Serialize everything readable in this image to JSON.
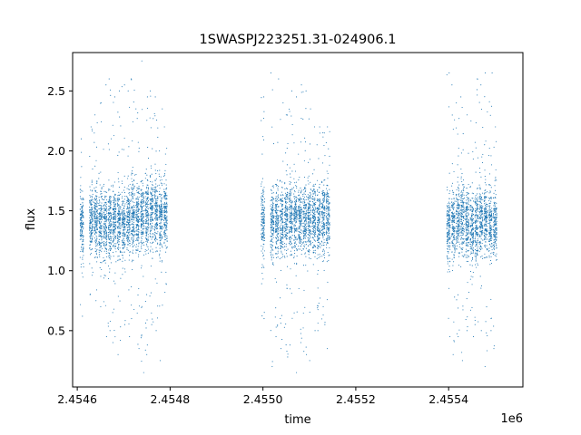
{
  "chart_data": {
    "type": "scatter",
    "title": "1SWASPJ223251.31-024906.1",
    "xlabel": "time",
    "ylabel": "flux",
    "x_offset_label": "1e6",
    "x_ticks": [
      {
        "value": 2.4546,
        "label": "2.4546"
      },
      {
        "value": 2.4548,
        "label": "2.4548"
      },
      {
        "value": 2.455,
        "label": "2.4550"
      },
      {
        "value": 2.4552,
        "label": "2.4552"
      },
      {
        "value": 2.4554,
        "label": "2.4554"
      }
    ],
    "y_ticks": [
      {
        "value": 0.5,
        "label": "0.5"
      },
      {
        "value": 1.0,
        "label": "1.0"
      },
      {
        "value": 1.5,
        "label": "1.5"
      },
      {
        "value": 2.0,
        "label": "2.0"
      },
      {
        "value": 2.5,
        "label": "2.5"
      }
    ],
    "xlim": [
      2.45459,
      2.45556
    ],
    "ylim": [
      0.03,
      2.82
    ],
    "grid": false,
    "marker_color": "#1f77b4",
    "series": [
      {
        "x": [
          2.45461,
          2.45463,
          2.45464,
          2.45465,
          2.45466,
          2.45467,
          2.45468,
          2.45469,
          2.4547,
          2.45471,
          2.45472,
          2.45473,
          2.45474,
          2.45475,
          2.45476,
          2.45477,
          2.45478,
          2.45479,
          2.455,
          2.45502,
          2.45503,
          2.45504,
          2.45505,
          2.45506,
          2.45507,
          2.45508,
          2.45509,
          2.4551,
          2.45511,
          2.45512,
          2.45513,
          2.45514,
          2.4554,
          2.45541,
          2.45542,
          2.45543,
          2.45544,
          2.45545,
          2.45546,
          2.45547,
          2.45548,
          2.45549,
          2.4555
        ],
        "y_mean": [
          1.38,
          1.4,
          1.42,
          1.4,
          1.38,
          1.4,
          1.42,
          1.41,
          1.39,
          1.43,
          1.45,
          1.44,
          1.47,
          1.48,
          1.5,
          1.48,
          1.45,
          1.47,
          1.4,
          1.41,
          1.43,
          1.42,
          1.44,
          1.45,
          1.43,
          1.44,
          1.42,
          1.43,
          1.44,
          1.42,
          1.45,
          1.44,
          1.36,
          1.39,
          1.42,
          1.45,
          1.4,
          1.37,
          1.38,
          1.41,
          1.43,
          1.4,
          1.39
        ],
        "y_min": [
          0.62,
          0.8,
          0.75,
          0.7,
          0.45,
          0.5,
          0.4,
          0.3,
          0.55,
          0.45,
          0.6,
          0.35,
          0.15,
          0.3,
          0.55,
          0.5,
          0.25,
          0.82,
          0.6,
          0.2,
          0.45,
          0.35,
          0.28,
          0.38,
          0.15,
          0.4,
          0.3,
          0.25,
          0.5,
          0.5,
          0.55,
          0.35,
          0.45,
          0.3,
          0.45,
          0.25,
          0.5,
          0.45,
          0.55,
          0.5,
          0.2,
          0.5,
          0.35
        ],
        "y_max": [
          2.1,
          2.2,
          2.3,
          2.4,
          2.55,
          2.6,
          2.45,
          2.5,
          2.55,
          2.5,
          2.6,
          2.35,
          2.75,
          2.45,
          2.5,
          2.45,
          2.35,
          2.2,
          2.45,
          2.65,
          2.6,
          2.4,
          2.3,
          2.5,
          2.45,
          2.55,
          2.5,
          2.35,
          2.2,
          2.2,
          2.15,
          2.2,
          2.65,
          2.55,
          2.4,
          2.45,
          2.3,
          2.25,
          2.6,
          2.55,
          2.65,
          2.65,
          2.2
        ],
        "points_per_night": 170
      }
    ]
  }
}
